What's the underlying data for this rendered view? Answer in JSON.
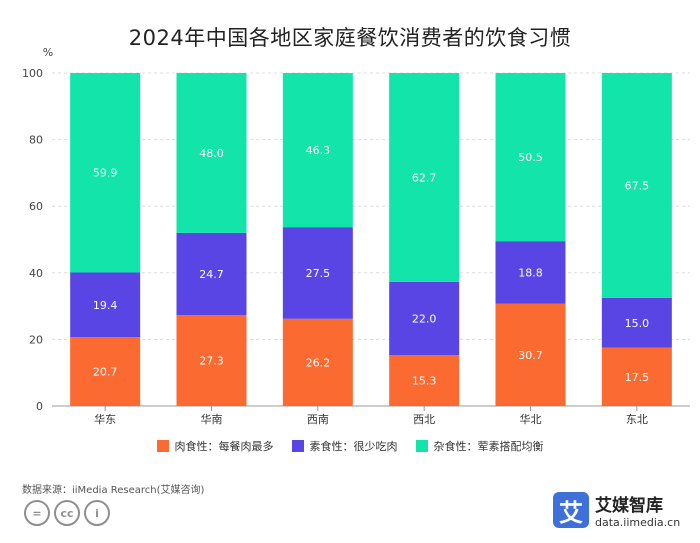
{
  "chart_data": {
    "type": "bar",
    "stacked": true,
    "title": "2024年中国各地区家庭餐饮消费者的饮食习惯",
    "ylabel": "%",
    "xlabel": "",
    "ylim": [
      0,
      100
    ],
    "yticks": [
      0,
      20,
      40,
      60,
      80,
      100
    ],
    "grid": true,
    "categories": [
      "华东",
      "华南",
      "西南",
      "西北",
      "华北",
      "东北"
    ],
    "series": [
      {
        "name": "肉食性：每餐肉最多",
        "color": "#fb6a30",
        "values": [
          20.7,
          27.3,
          26.2,
          15.3,
          30.7,
          17.5
        ]
      },
      {
        "name": "素食性：很少吃肉",
        "color": "#5845e3",
        "values": [
          19.4,
          24.7,
          27.5,
          22.0,
          18.8,
          15.0
        ]
      },
      {
        "name": "杂食性：荤素搭配均衡",
        "color": "#12e4aa",
        "values": [
          59.9,
          48.0,
          46.3,
          62.7,
          50.5,
          67.5
        ]
      }
    ]
  },
  "footer": {
    "source": "数据来源：iiMedia Research(艾媒咨询)",
    "cc_icons": [
      "=",
      "cc",
      "i"
    ],
    "brand_logo_char": "艾",
    "brand_name": "艾媒智库",
    "brand_url": "data.iimedia.cn"
  }
}
